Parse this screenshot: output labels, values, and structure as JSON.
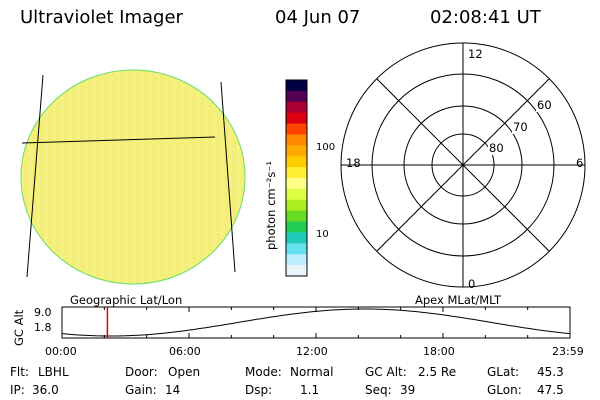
{
  "header": {
    "instrument": "Ultraviolet Imager",
    "date": "04 Jun 07",
    "time": "02:08:41 UT"
  },
  "colorbar": {
    "unit_label": "photon cm⁻²s⁻¹",
    "ticks": [
      "100",
      "10"
    ],
    "colors": [
      "#000044",
      "#550055",
      "#aa0033",
      "#dd0011",
      "#ff4400",
      "#ff8800",
      "#ffaa00",
      "#ffcc00",
      "#ffee33",
      "#ffff88",
      "#ddff44",
      "#aaee22",
      "#66dd22",
      "#22cc55",
      "#22ccbb",
      "#66e0ee",
      "#bbeeff",
      "#e8f4f8"
    ]
  },
  "left_panel": {
    "label": "Geographic Lat/Lon",
    "fill_color": "#f4f07a"
  },
  "polar_plot": {
    "label": "Apex MLat/MLT",
    "mlt_labels": {
      "top": "12",
      "left": "18",
      "right": "6",
      "bottom": "0"
    },
    "lat_labels": [
      "60",
      "70",
      "80"
    ]
  },
  "timeline": {
    "ylabel": "GC Alt",
    "ymax": "9.0",
    "ymin": "1.8",
    "xticks": [
      "00:00",
      "06:00",
      "12:00",
      "18:00",
      "23:59"
    ],
    "marker_hours": 2.145,
    "marker_color": "#dd0000"
  },
  "info": {
    "flt_label": "Flt:",
    "flt_value": "LBHL",
    "door_label": "Door:",
    "door_value": "Open",
    "mode_label": "Mode:",
    "mode_value": "Normal",
    "gcalt_label": "GC Alt:",
    "gcalt_value": "2.5 Re",
    "glat_label": "GLat:",
    "glat_value": "45.3",
    "ip_label": "IP:",
    "ip_value": "36.0",
    "gain_label": "Gain:",
    "gain_value": "14",
    "dsp_label": "Dsp:",
    "dsp_value": "1.1",
    "seq_label": "Seq:",
    "seq_value": "39",
    "glon_label": "GLon:",
    "glon_value": "47.5"
  }
}
